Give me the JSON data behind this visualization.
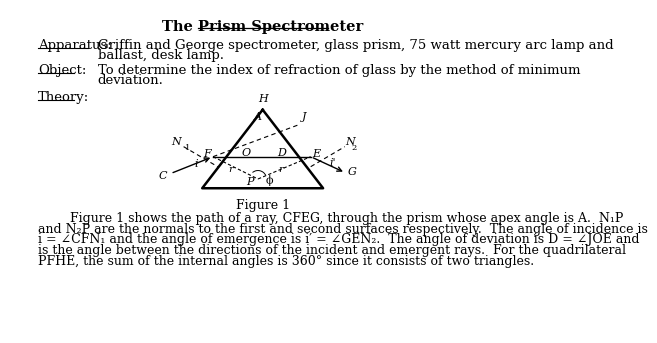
{
  "title": "The Prism Spectrometer",
  "apparatus_label": "Apparatus:",
  "apparatus_text1": "Griffin and George spectrometer, glass prism, 75 watt mercury arc lamp and",
  "apparatus_text2": "ballast, desk lamp.",
  "object_label": "Object:",
  "object_text1": "To determine the index of refraction of glass by the method of minimum",
  "object_text2": "deviation.",
  "theory_label": "Theory:",
  "figure_caption": "Figure 1",
  "para_lines": [
    "        Figure 1 shows the path of a ray, CFEG, through the prism whose apex angle is A.  N₁P",
    "and N₂P are the normals to the first and second surfaces respectively.  The angle of incidence is",
    "i = ∠CFN₁ and the angle of emergence is i′ = ∠GEN₂.  The angle of deviation is D = ∠JOE and",
    "is the angle between the directions of the incident and emergent rays.  For the quadrilateral",
    "PFHE, the sum of the internal angles is 360° since it consists of two triangles."
  ],
  "bg_color": "#ffffff",
  "text_color": "#000000"
}
